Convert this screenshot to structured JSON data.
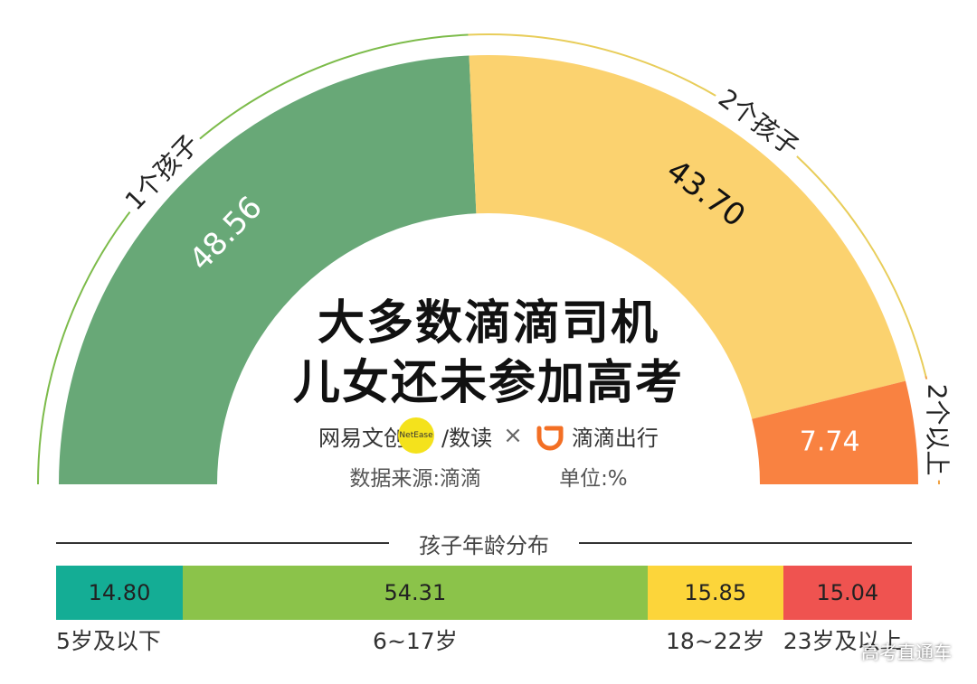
{
  "gauge": {
    "type": "pie",
    "slices": [
      {
        "label": "1个孩子",
        "value": 48.56,
        "value_label": "48.56",
        "color": "#68a877",
        "text_color": "#ffffff",
        "arc_color": "#7cbb4a"
      },
      {
        "label": "2个孩子",
        "value": 43.7,
        "value_label": "43.70",
        "color": "#fbd26f",
        "text_color": "#111111",
        "arc_color": "#e8cd5a"
      },
      {
        "label": "2个以上",
        "value": 7.74,
        "value_label": "7.74",
        "color": "#f98241",
        "text_color": "#ffffff",
        "arc_color": "#f0a040"
      }
    ]
  },
  "title": {
    "line1": "大多数滴滴司机",
    "line2": "儿女还未参加高考"
  },
  "brand": {
    "netease": "网易文创",
    "netease_badge": "NetEase",
    "shudu": "/数读",
    "times": "×",
    "didi": "滴滴出行",
    "didi_color": "#f36f24"
  },
  "meta": {
    "source": "数据来源:滴滴",
    "unit": "单位:%"
  },
  "chart_data": {
    "type": "bar",
    "title": "孩子年龄分布",
    "categories": [
      "5岁及以下",
      "6~17岁",
      "18~22岁",
      "23岁及以上"
    ],
    "values": [
      14.8,
      54.31,
      15.85,
      15.04
    ],
    "value_labels": [
      "14.80",
      "54.31",
      "15.85",
      "15.04"
    ],
    "colors": [
      "#14ad95",
      "#8bc34a",
      "#fcd53a",
      "#ef5350"
    ]
  },
  "watermark": "高考直通车"
}
